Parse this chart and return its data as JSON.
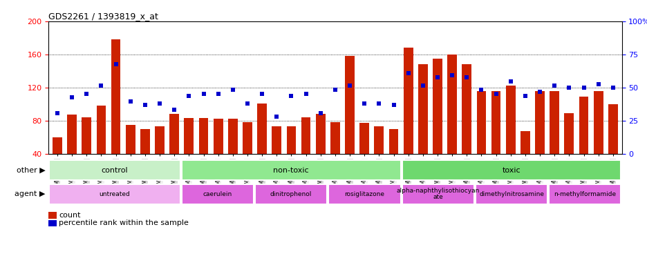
{
  "title": "GDS2261 / 1393819_x_at",
  "samples": [
    "GSM127079",
    "GSM127080",
    "GSM127081",
    "GSM127082",
    "GSM127083",
    "GSM127084",
    "GSM127085",
    "GSM127086",
    "GSM127087",
    "GSM127054",
    "GSM127055",
    "GSM127056",
    "GSM127057",
    "GSM127058",
    "GSM127064",
    "GSM127065",
    "GSM127066",
    "GSM127067",
    "GSM127068",
    "GSM127074",
    "GSM127075",
    "GSM127076",
    "GSM127077",
    "GSM127078",
    "GSM127049",
    "GSM127050",
    "GSM127051",
    "GSM127052",
    "GSM127053",
    "GSM127059",
    "GSM127060",
    "GSM127061",
    "GSM127062",
    "GSM127063",
    "GSM127069",
    "GSM127070",
    "GSM127071",
    "GSM127072",
    "GSM127073"
  ],
  "bar_values": [
    60,
    87,
    84,
    98,
    178,
    75,
    70,
    73,
    88,
    83,
    83,
    82,
    82,
    78,
    101,
    73,
    73,
    84,
    88,
    78,
    158,
    77,
    73,
    70,
    168,
    148,
    155,
    160,
    148,
    116,
    116,
    122,
    67,
    116,
    116,
    89,
    109,
    116,
    100
  ],
  "dot_values": [
    89,
    108,
    112,
    122,
    148,
    103,
    99,
    101,
    93,
    110,
    112,
    112,
    117,
    101,
    112,
    85,
    110,
    112,
    89,
    117,
    122,
    101,
    101,
    99,
    137,
    122,
    132,
    135,
    132,
    117,
    112,
    127,
    110,
    115,
    122,
    120,
    120,
    124,
    120
  ],
  "bar_color": "#cc2200",
  "dot_color": "#0000cc",
  "ylim_left": [
    40,
    200
  ],
  "ylim_right": [
    0,
    100
  ],
  "yticks_left": [
    40,
    80,
    120,
    160,
    200
  ],
  "yticks_right": [
    0,
    25,
    50,
    75,
    100
  ],
  "group_other": [
    {
      "label": "control",
      "start": 0,
      "end": 9
    },
    {
      "label": "non-toxic",
      "start": 9,
      "end": 24
    },
    {
      "label": "toxic",
      "start": 24,
      "end": 39
    }
  ],
  "group_other_colors": [
    "#c8f0c8",
    "#90e890",
    "#6ed86e"
  ],
  "group_agent": [
    {
      "label": "untreated",
      "start": 0,
      "end": 9
    },
    {
      "label": "caerulein",
      "start": 9,
      "end": 14
    },
    {
      "label": "dinitrophenol",
      "start": 14,
      "end": 19
    },
    {
      "label": "rosiglitazone",
      "start": 19,
      "end": 24
    },
    {
      "label": "alpha-naphthylisothiocyan\nate",
      "start": 24,
      "end": 29
    },
    {
      "label": "dimethylnitrosamine",
      "start": 29,
      "end": 34
    },
    {
      "label": "n-methylformamide",
      "start": 34,
      "end": 39
    }
  ],
  "group_agent_colors": [
    "#e8b0e8",
    "#e060e0",
    "#e060e0",
    "#e060e0",
    "#e060e0",
    "#e060e0",
    "#e060e0"
  ],
  "legend_count": "count",
  "legend_percentile": "percentile rank within the sample",
  "bg_tick_even": "#d8d8d8",
  "bg_tick_odd": "#f0f0f0"
}
